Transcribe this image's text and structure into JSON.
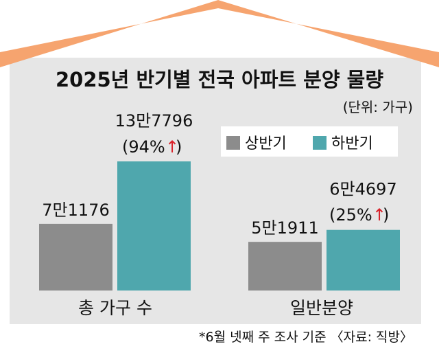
{
  "chart_data": {
    "type": "bar",
    "title": "2025년 반기별 전국 아파트 분양 물량",
    "unit_note": "(단위: 가구)",
    "categories": [
      "총 가구 수",
      "일반분양"
    ],
    "series": [
      {
        "name": "상반기",
        "values": [
          71176,
          51911
        ],
        "labels": [
          "7만1176",
          "5만1911"
        ]
      },
      {
        "name": "하반기",
        "values": [
          137796,
          64697
        ],
        "labels": [
          "13만7796",
          "6만4697"
        ]
      }
    ],
    "annotations": [
      {
        "category": "총 가구 수",
        "series": "하반기",
        "prefix": "(94%",
        "suffix": " )"
      },
      {
        "category": "일반분양",
        "series": "하반기",
        "prefix": "(25%",
        "suffix": " )"
      }
    ],
    "legend_position": "top-right",
    "grid": false
  },
  "footnote": "*6월 넷째 주 조사 기준 〈자료: 직방〉",
  "colors": {
    "roof": "#f6a46f",
    "house": "#e6e6e6",
    "first_half": "#8c8c8c",
    "second_half": "#4fa7ad",
    "arrow": "#d9232b",
    "text": "#111111"
  },
  "icons": {
    "increase": "up-arrow-icon"
  }
}
